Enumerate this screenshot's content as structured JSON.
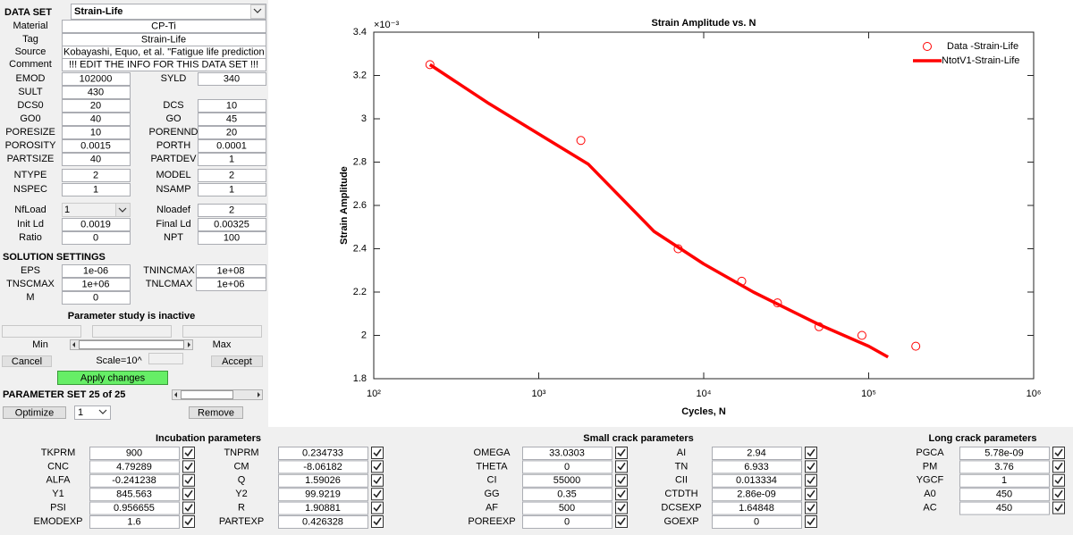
{
  "data_set": {
    "label": "DATA SET",
    "value": "Strain-Life"
  },
  "info": [
    {
      "label": "Material",
      "value": "CP-Ti"
    },
    {
      "label": "Tag",
      "value": "Strain-Life"
    },
    {
      "label": "Source",
      "value": "Kobayashi, Equo, et al. \"Fatigue life prediction of"
    },
    {
      "label": "Comment",
      "value": "!!! EDIT THE INFO FOR THIS DATA SET !!!"
    }
  ],
  "properties": [
    [
      {
        "label": "EMOD",
        "value": "102000"
      },
      {
        "label": "SYLD",
        "value": "340"
      }
    ],
    [
      {
        "label": "SULT",
        "value": "430"
      }
    ],
    [
      {
        "label": "DCS0",
        "value": "20"
      },
      {
        "label": "DCS",
        "value": "10"
      }
    ],
    [
      {
        "label": "GO0",
        "value": "40"
      },
      {
        "label": "GO",
        "value": "45"
      }
    ],
    [
      {
        "label": "PORESIZE",
        "value": "10"
      },
      {
        "label": "PORENND",
        "value": "20"
      }
    ],
    [
      {
        "label": "POROSITY",
        "value": "0.0015"
      },
      {
        "label": "PORTH",
        "value": "0.0001"
      }
    ],
    [
      {
        "label": "PARTSIZE",
        "value": "40"
      },
      {
        "label": "PARTDEV",
        "value": "1"
      }
    ],
    [
      {
        "label": "NTYPE",
        "value": "2"
      },
      {
        "label": "MODEL",
        "value": "2"
      }
    ],
    [
      {
        "label": "NSPEC",
        "value": "1"
      },
      {
        "label": "NSAMP",
        "value": "1"
      }
    ],
    [
      {
        "label": "NfLoad",
        "value": "1",
        "disabled": true
      },
      {
        "label": "Nloadef",
        "value": "2"
      }
    ],
    [
      {
        "label": "Init Ld",
        "value": "0.0019"
      },
      {
        "label": "Final Ld",
        "value": "0.00325"
      }
    ],
    [
      {
        "label": "Ratio",
        "value": "0"
      },
      {
        "label": "NPT",
        "value": "100"
      }
    ]
  ],
  "solution_settings": {
    "title": "SOLUTION SETTINGS",
    "rows": [
      [
        {
          "label": "EPS",
          "value": "1e-06"
        },
        {
          "label": "TNINCMAX",
          "value": "1e+08"
        }
      ],
      [
        {
          "label": "TNSCMAX",
          "value": "1e+06"
        },
        {
          "label": "TNLCMAX",
          "value": "1e+06"
        }
      ],
      [
        {
          "label": "M",
          "value": "0"
        }
      ]
    ]
  },
  "parameter_study": {
    "status": "Parameter study is inactive",
    "min": "Min",
    "max": "Max",
    "scale": "Scale=10^",
    "cancel": "Cancel",
    "accept": "Accept",
    "apply": "Apply changes"
  },
  "parameter_set": {
    "title": "PARAMETER SET 25 of 25",
    "optimize": "Optimize",
    "selector": "1",
    "remove": "Remove"
  },
  "incubation": {
    "title": "Incubation parameters",
    "rows": [
      [
        {
          "label": "TKPRM",
          "value": "900"
        },
        {
          "label": "TNPRM",
          "value": "0.234733"
        }
      ],
      [
        {
          "label": "CNC",
          "value": "4.79289"
        },
        {
          "label": "CM",
          "value": "-8.06182"
        }
      ],
      [
        {
          "label": "ALFA",
          "value": "-0.241238"
        },
        {
          "label": "Q",
          "value": "1.59026"
        }
      ],
      [
        {
          "label": "Y1",
          "value": "845.563"
        },
        {
          "label": "Y2",
          "value": "99.9219"
        }
      ],
      [
        {
          "label": "PSI",
          "value": "0.956655"
        },
        {
          "label": "R",
          "value": "1.90881"
        }
      ],
      [
        {
          "label": "EMODEXP",
          "value": "1.6"
        },
        {
          "label": "PARTEXP",
          "value": "0.426328"
        }
      ]
    ]
  },
  "small_crack": {
    "title": "Small crack parameters",
    "rows": [
      [
        {
          "label": "OMEGA",
          "value": "33.0303"
        },
        {
          "label": "AI",
          "value": "2.94"
        }
      ],
      [
        {
          "label": "THETA",
          "value": "0"
        },
        {
          "label": "TN",
          "value": "6.933"
        }
      ],
      [
        {
          "label": "CI",
          "value": "55000"
        },
        {
          "label": "CII",
          "value": "0.013334"
        }
      ],
      [
        {
          "label": "GG",
          "value": "0.35"
        },
        {
          "label": "CTDTH",
          "value": "2.86e-09"
        }
      ],
      [
        {
          "label": "AF",
          "value": "500"
        },
        {
          "label": "DCSEXP",
          "value": "1.64848"
        }
      ],
      [
        {
          "label": "POREEXP",
          "value": "0"
        },
        {
          "label": "GOEXP",
          "value": "0"
        }
      ]
    ]
  },
  "long_crack": {
    "title": "Long crack parameters",
    "rows": [
      [
        {
          "label": "PGCA",
          "value": "5.78e-09"
        }
      ],
      [
        {
          "label": "PM",
          "value": "3.76"
        }
      ],
      [
        {
          "label": "YGCF",
          "value": "1"
        }
      ],
      [
        {
          "label": "A0",
          "value": "450"
        }
      ],
      [
        {
          "label": "AC",
          "value": "450"
        }
      ]
    ]
  },
  "chart_data": {
    "type": "line",
    "title": "Strain Amplitude vs. N",
    "x_label": "Cycles, N",
    "y_label": "Strain Amplitude",
    "y_exponent_label": "×10⁻³",
    "xscale": "log",
    "grid": false,
    "legend": "northeast",
    "xlim": [
      100,
      1000000
    ],
    "xticks": [
      {
        "value": 100,
        "label": "10²"
      },
      {
        "value": 1000,
        "label": "10³"
      },
      {
        "value": 10000,
        "label": "10⁴"
      },
      {
        "value": 100000,
        "label": "10⁵"
      },
      {
        "value": 1000000,
        "label": "10⁶"
      }
    ],
    "ylim": [
      1.8,
      3.4
    ],
    "yticks": [
      1.8,
      2,
      2.2,
      2.4,
      2.6,
      2.8,
      3,
      3.2,
      3.4
    ],
    "series": [
      {
        "name": "Data -Strain-Life",
        "type": "scatter",
        "color": "#ff0000",
        "x": [
          219,
          1800,
          7000,
          17000,
          28000,
          50000,
          91000,
          193000
        ],
        "values": [
          3.25,
          2.9,
          2.4,
          2.25,
          2.15,
          2.04,
          2.0,
          1.95
        ]
      },
      {
        "name": "NtotV1-Strain-Life",
        "type": "line",
        "color": "#ff0000",
        "x": [
          219,
          500,
          1000,
          2000,
          5000,
          10000,
          20000,
          50000,
          100000,
          131000
        ],
        "values": [
          3.25,
          3.07,
          2.93,
          2.79,
          2.48,
          2.33,
          2.2,
          2.05,
          1.95,
          1.9
        ]
      }
    ]
  }
}
